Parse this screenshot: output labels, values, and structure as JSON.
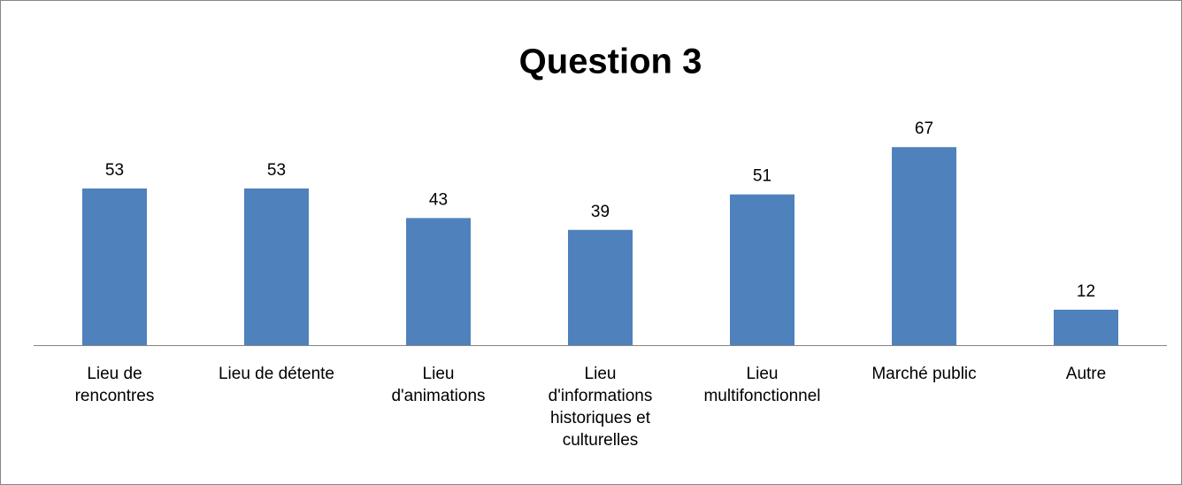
{
  "chart_data": {
    "type": "bar",
    "title": "Question 3",
    "categories": [
      "Lieu de\nrencontres",
      "Lieu de détente",
      "Lieu\nd'animations",
      "Lieu\nd'informations\nhistoriques et\nculturelles",
      "Lieu\nmultifonctionnel",
      "Marché public",
      "Autre"
    ],
    "values": [
      53,
      53,
      43,
      39,
      51,
      67,
      12
    ],
    "color": "#4f81bd"
  }
}
